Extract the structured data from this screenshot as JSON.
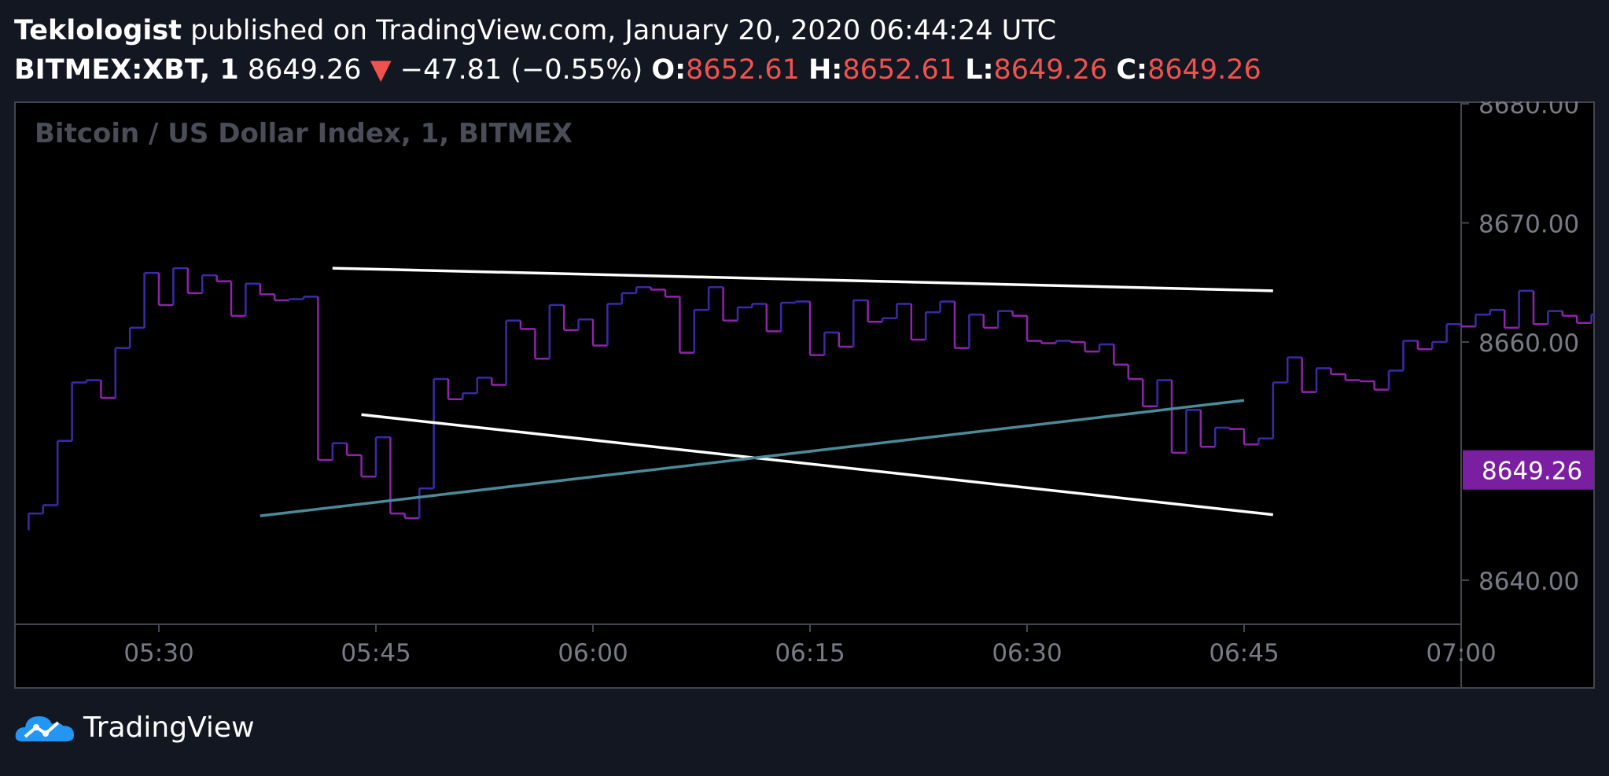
{
  "header": {
    "author": "Teklologist",
    "published_text": "published on TradingView.com, January 20, 2020 06:44:24 UTC",
    "symbol": "BITMEX:XBT, 1",
    "last_price": "8649.26",
    "change_arrow": "▼",
    "change": "−47.81 (−0.55%)",
    "o_label": "O:",
    "o_value": "8652.61",
    "h_label": "H:",
    "h_value": "8652.61",
    "l_label": "L:",
    "l_value": "8649.26",
    "c_label": "C:",
    "c_value": "8649.26"
  },
  "footer": {
    "brand": "TradingView"
  },
  "colors": {
    "background": "#131722",
    "chart_background": "#000000",
    "bar_color_a": "#3b2aa8",
    "bar_color_b": "#8e24aa",
    "trendline_white": "#ffffff",
    "trendline_teal": "#4a8a99",
    "price_tag": "#7b1fa2",
    "axis_text": "#787b86",
    "negative": "#ef5350"
  },
  "chart_data": {
    "type": "ohlc",
    "title": "Bitcoin / US Dollar Index, 1, BITMEX",
    "x_ticks": [
      "05:30",
      "05:45",
      "06:00",
      "06:15",
      "06:30",
      "06:45",
      "07:00"
    ],
    "y_ticks": [
      "8680.00",
      "8670.00",
      "8660.00",
      "8640.00"
    ],
    "ylim": [
      8636.3,
      8680.2
    ],
    "x_range_minutes": [
      "05:20",
      "07:00"
    ],
    "last_price_label": "8649.26",
    "last_price": 8649.26,
    "close_series_start_time": "05:20",
    "close_series_step_minutes": 1,
    "close_series": [
      8644.2,
      8645.6,
      8646.3,
      8651.7,
      8656.6,
      8656.8,
      8655.3,
      8659.5,
      8661.2,
      8665.8,
      8663.1,
      8666.2,
      8664.1,
      8665.6,
      8665.1,
      8662.2,
      8664.9,
      8664.0,
      8663.5,
      8663.6,
      8663.8,
      8650.1,
      8651.5,
      8650.5,
      8648.7,
      8652.0,
      8645.6,
      8645.2,
      8647.7,
      8656.9,
      8655.2,
      8655.7,
      8657.0,
      8656.4,
      8661.8,
      8661.1,
      8658.6,
      8663.1,
      8661.0,
      8661.9,
      8659.7,
      8663.2,
      8664.1,
      8664.6,
      8664.4,
      8663.8,
      8659.1,
      8662.7,
      8664.6,
      8661.8,
      8662.9,
      8663.2,
      8660.9,
      8663.3,
      8663.4,
      8658.9,
      8660.8,
      8659.6,
      8663.5,
      8661.7,
      8662.0,
      8663.2,
      8660.2,
      8662.5,
      8663.4,
      8659.5,
      8662.3,
      8661.2,
      8662.6,
      8662.2,
      8660.1,
      8659.9,
      8660.1,
      8660.0,
      8659.2,
      8659.8,
      8658.1,
      8656.9,
      8654.6,
      8656.8,
      8650.7,
      8654.3,
      8651.2,
      8652.8,
      8652.7,
      8651.4,
      8651.9,
      8656.6,
      8658.7,
      8655.8,
      8657.8,
      8657.3,
      8656.8,
      8656.7,
      8656.0,
      8657.6,
      8660.1,
      8659.4,
      8660.0,
      8661.5,
      8661.3,
      8662.3,
      8662.7,
      8661.2,
      8664.3,
      8661.5,
      8662.6,
      8662.2,
      8661.6,
      8662.3,
      8664.3,
      8664.8,
      8664.1,
      8661.1,
      8662.3,
      8664.4,
      8663.3,
      8664.1,
      8661.5,
      8663.6,
      8659.9,
      8656.8,
      8651.3,
      8650.3,
      8648.2,
      8650.2,
      8651.0,
      8652.7,
      8651.9,
      8649.3
    ],
    "trendlines": [
      {
        "name": "upper-resistance",
        "color": "white",
        "from": {
          "time": "05:42",
          "price": 8666.2
        },
        "to": {
          "time": "06:47",
          "price": 8664.3
        }
      },
      {
        "name": "lower-support",
        "color": "white",
        "from": {
          "time": "05:44",
          "price": 8653.9
        },
        "to": {
          "time": "06:47",
          "price": 8645.5
        }
      },
      {
        "name": "rising-line",
        "color": "teal",
        "from": {
          "time": "05:37",
          "price": 8645.4
        },
        "to": {
          "time": "06:45",
          "price": 8655.1
        }
      }
    ]
  }
}
